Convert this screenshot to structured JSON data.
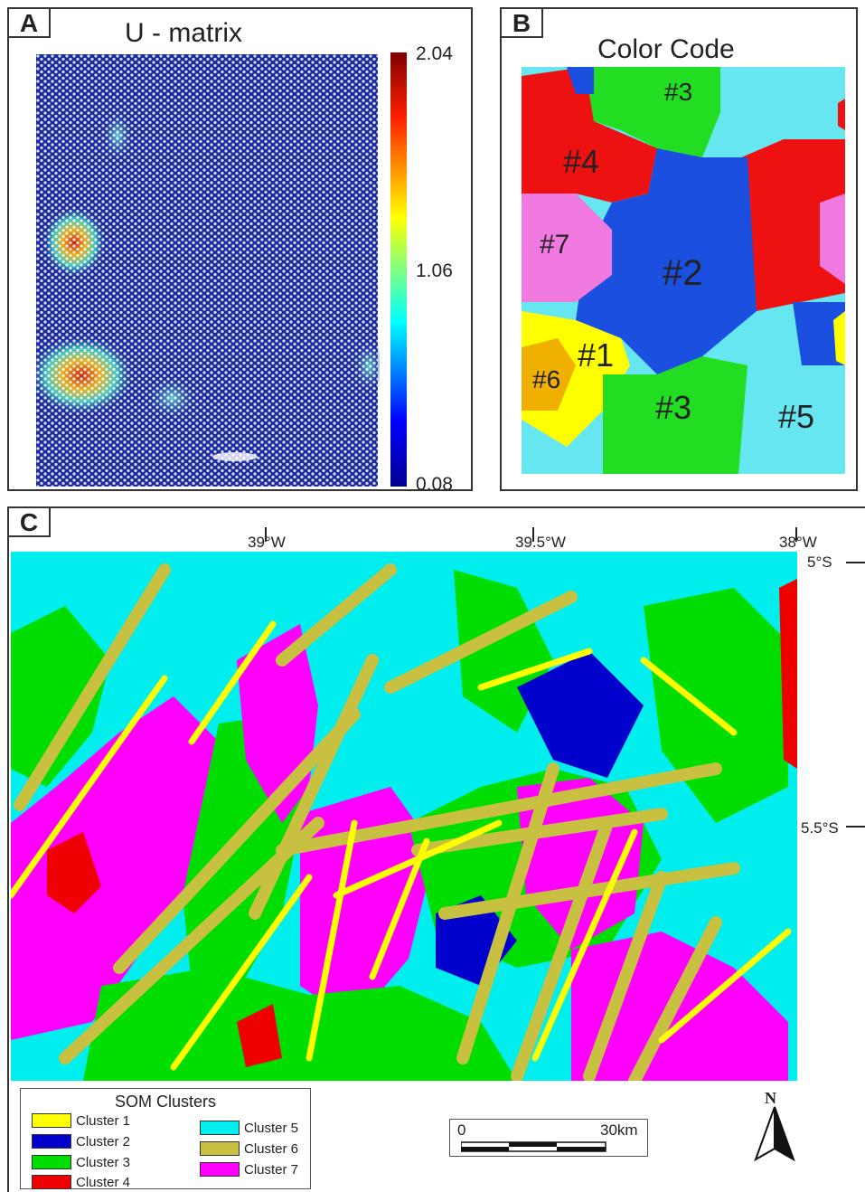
{
  "panel_a": {
    "letter": "A",
    "title": "U - matrix",
    "colorbar": {
      "max": "2.04",
      "mid": "1.06",
      "min": "0.08"
    }
  },
  "panel_b": {
    "letter": "B",
    "title": "Color Code",
    "labels": [
      {
        "text": "#3",
        "id": "top"
      },
      {
        "text": "#4",
        "id": "four"
      },
      {
        "text": "#7",
        "id": "seven"
      },
      {
        "text": "#2",
        "id": "two"
      },
      {
        "text": "#1",
        "id": "one"
      },
      {
        "text": "#6",
        "id": "six"
      },
      {
        "text": "#3",
        "id": "bottom"
      },
      {
        "text": "#5",
        "id": "five"
      }
    ]
  },
  "panel_c": {
    "letter": "C",
    "lon_labels": [
      "39°W",
      "39.5°W",
      "38°W"
    ],
    "lat_labels": [
      "5°S",
      "5.5°S"
    ],
    "north": "N"
  },
  "legend": {
    "title": "SOM Clusters",
    "items": [
      {
        "label": "Cluster 1",
        "color": "#ffff00"
      },
      {
        "label": "Cluster 2",
        "color": "#0000cc"
      },
      {
        "label": "Cluster 3",
        "color": "#00dd00"
      },
      {
        "label": "Cluster 4",
        "color": "#ee0000"
      },
      {
        "label": "Cluster 5",
        "color": "#00eeee"
      },
      {
        "label": "Cluster 6",
        "color": "#c8c040"
      },
      {
        "label": "Cluster 7",
        "color": "#ff00ff"
      }
    ]
  },
  "scalebar": {
    "start": "0",
    "end": "30km"
  },
  "colors": {
    "cluster1": "#ffff00",
    "cluster2": "#1a4fe0",
    "cluster3": "#22dd22",
    "cluster4": "#ee1111",
    "cluster5": "#66e6f0",
    "cluster6": "#f0b000",
    "cluster7": "#f07ae0",
    "umatrix_low": "#1a2aa0",
    "umatrix_high": "#cc1010"
  }
}
